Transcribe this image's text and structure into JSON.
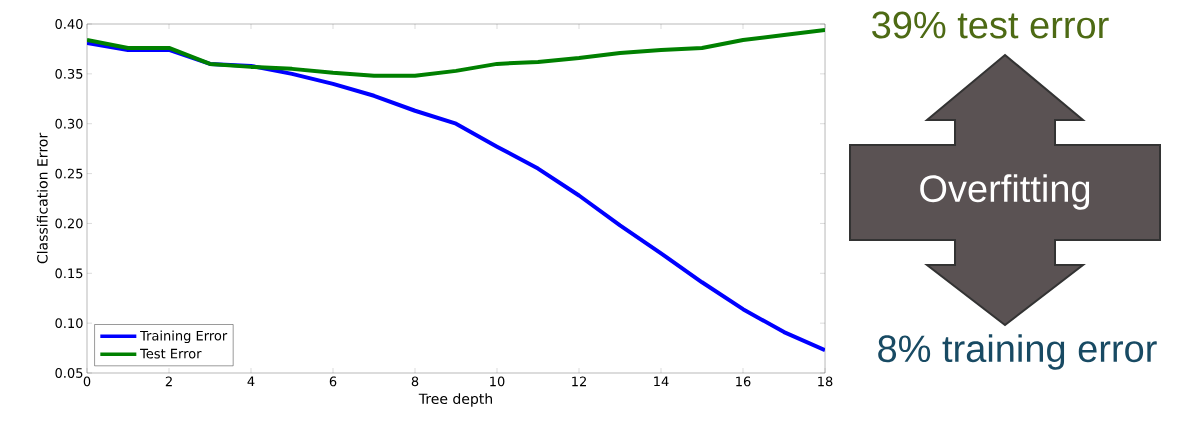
{
  "chart_data": {
    "type": "line",
    "xlabel": "Tree depth",
    "ylabel": "Classification Error",
    "x": [
      0,
      1,
      2,
      3,
      4,
      5,
      6,
      7,
      8,
      9,
      10,
      11,
      12,
      13,
      14,
      15,
      16,
      17,
      18
    ],
    "xlim": [
      0,
      18
    ],
    "xticks": [
      0,
      2,
      4,
      6,
      8,
      10,
      12,
      14,
      16,
      18
    ],
    "ylim": [
      0.05,
      0.4
    ],
    "yticks": [
      {
        "value": 0.05,
        "label": "0.05"
      },
      {
        "value": 0.1,
        "label": "0.10"
      },
      {
        "value": 0.15,
        "label": "0.15"
      },
      {
        "value": 0.2,
        "label": "0.20"
      },
      {
        "value": 0.25,
        "label": "0.25"
      },
      {
        "value": 0.3,
        "label": "0.30"
      },
      {
        "value": 0.35,
        "label": "0.35"
      },
      {
        "value": 0.4,
        "label": "0.40"
      }
    ],
    "legend": "bottom left",
    "line_style": "solid",
    "marker": "none",
    "grid": false,
    "series": [
      {
        "name": "Training Error",
        "color": "#0000ff",
        "values": [
          0.381,
          0.374,
          0.374,
          0.36,
          0.358,
          0.35,
          0.34,
          0.328,
          0.313,
          0.3,
          0.277,
          0.255,
          0.228,
          0.198,
          0.17,
          0.141,
          0.114,
          0.091,
          0.073
        ]
      },
      {
        "name": "Test Error",
        "color": "#008000",
        "values": [
          0.384,
          0.376,
          0.376,
          0.36,
          0.357,
          0.355,
          0.351,
          0.348,
          0.348,
          0.353,
          0.36,
          0.362,
          0.366,
          0.371,
          0.374,
          0.376,
          0.384,
          0.389,
          0.394
        ]
      }
    ],
    "annotations": [
      "39% test error",
      "Overfitting",
      "8% training error"
    ]
  }
}
